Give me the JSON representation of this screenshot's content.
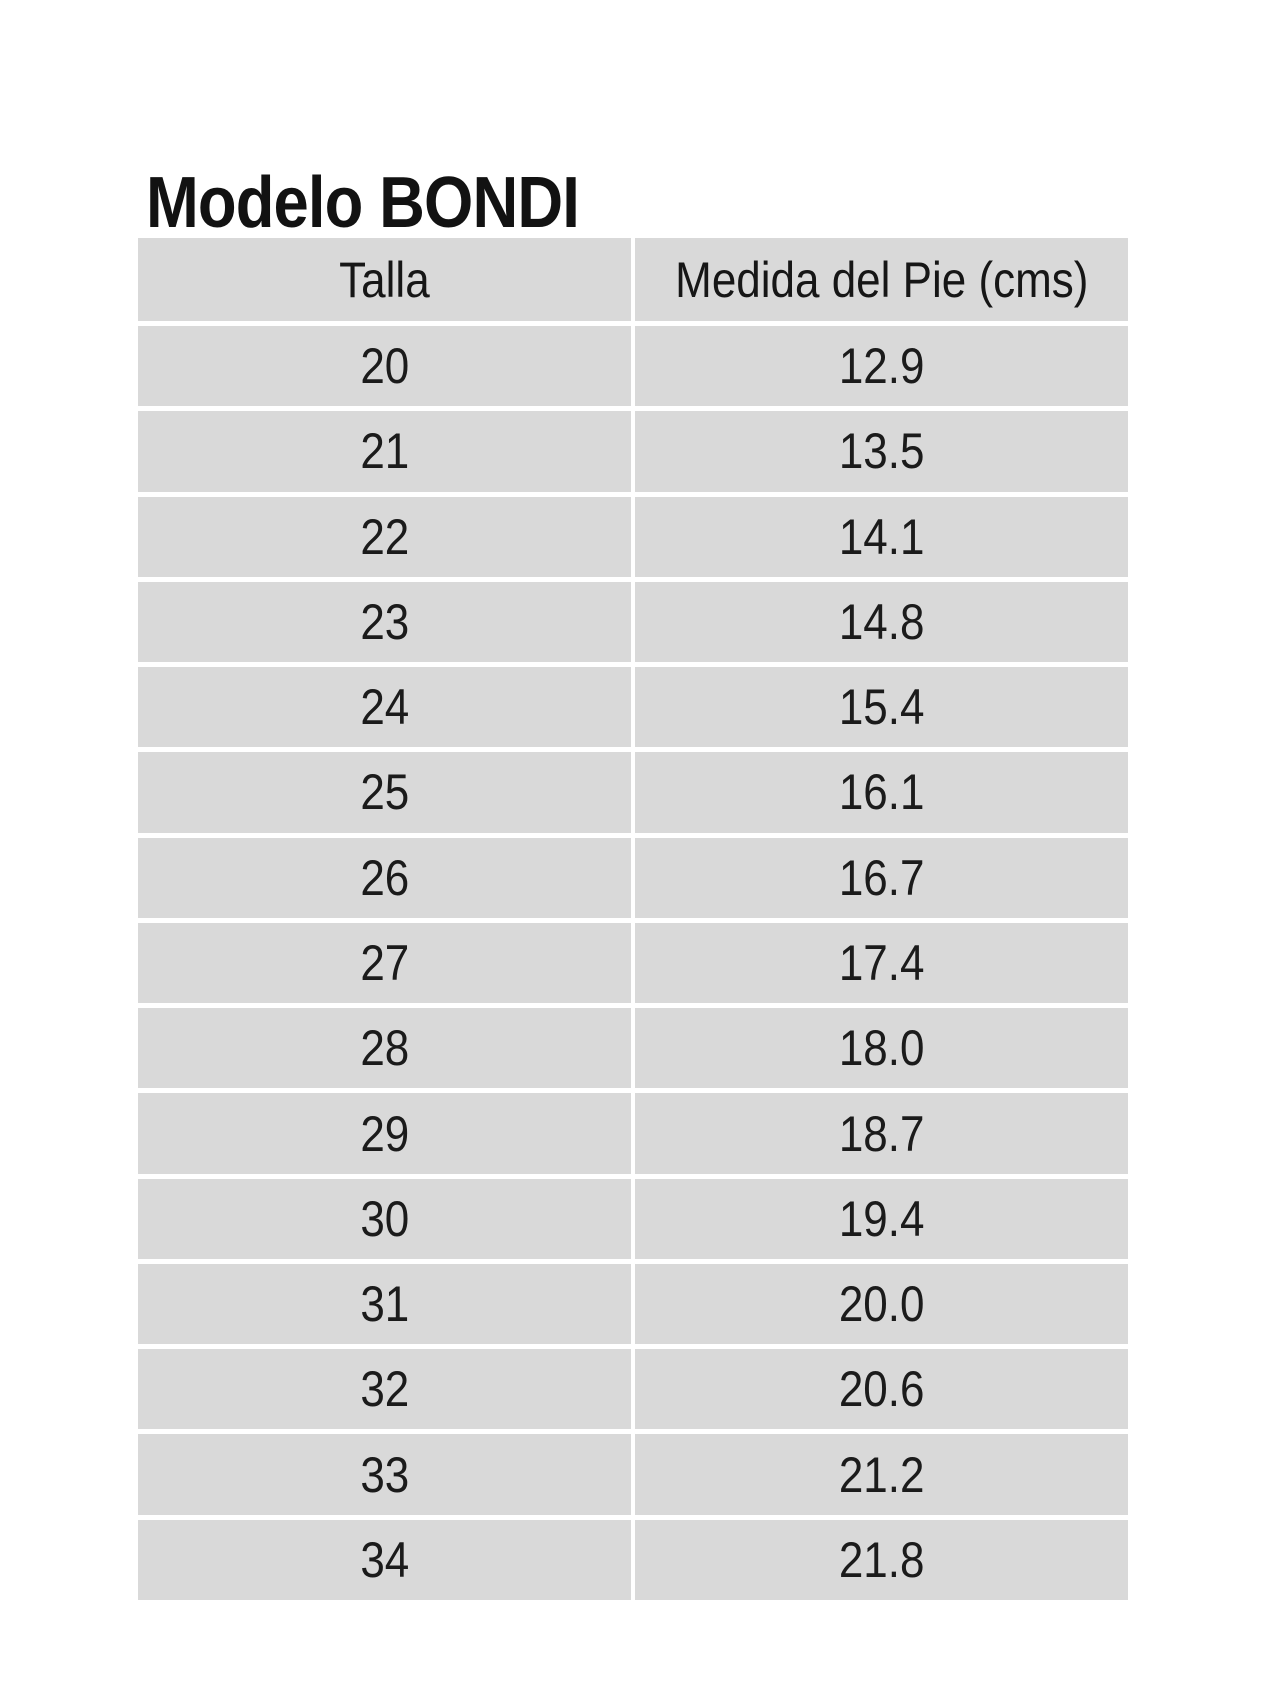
{
  "page": {
    "title": "Modelo BONDI"
  },
  "table": {
    "columns": [
      "Talla",
      "Medida del Pie (cms)"
    ],
    "rows": [
      {
        "size": "20",
        "measure": "12.9"
      },
      {
        "size": "21",
        "measure": "13.5"
      },
      {
        "size": "22",
        "measure": "14.1"
      },
      {
        "size": "23",
        "measure": "14.8"
      },
      {
        "size": "24",
        "measure": "15.4"
      },
      {
        "size": "25",
        "measure": "16.1"
      },
      {
        "size": "26",
        "measure": "16.7"
      },
      {
        "size": "27",
        "measure": "17.4"
      },
      {
        "size": "28",
        "measure": "18.0"
      },
      {
        "size": "29",
        "measure": "18.7"
      },
      {
        "size": "30",
        "measure": "19.4"
      },
      {
        "size": "31",
        "measure": "20.0"
      },
      {
        "size": "32",
        "measure": "20.6"
      },
      {
        "size": "33",
        "measure": "21.2"
      },
      {
        "size": "34",
        "measure": "21.8"
      }
    ]
  },
  "colors": {
    "cell_background": "#d9d9d9",
    "separator": "#ffffff",
    "text": "#1b1b1b",
    "title_text": "#121212"
  },
  "chart_data": {
    "type": "table",
    "title": "Modelo BONDI",
    "columns": [
      "Talla",
      "Medida del Pie (cms)"
    ],
    "rows": [
      [
        20,
        12.9
      ],
      [
        21,
        13.5
      ],
      [
        22,
        14.1
      ],
      [
        23,
        14.8
      ],
      [
        24,
        15.4
      ],
      [
        25,
        16.1
      ],
      [
        26,
        16.7
      ],
      [
        27,
        17.4
      ],
      [
        28,
        18.0
      ],
      [
        29,
        18.7
      ],
      [
        30,
        19.4
      ],
      [
        31,
        20.0
      ],
      [
        32,
        20.6
      ],
      [
        33,
        21.2
      ],
      [
        34,
        21.8
      ]
    ]
  }
}
